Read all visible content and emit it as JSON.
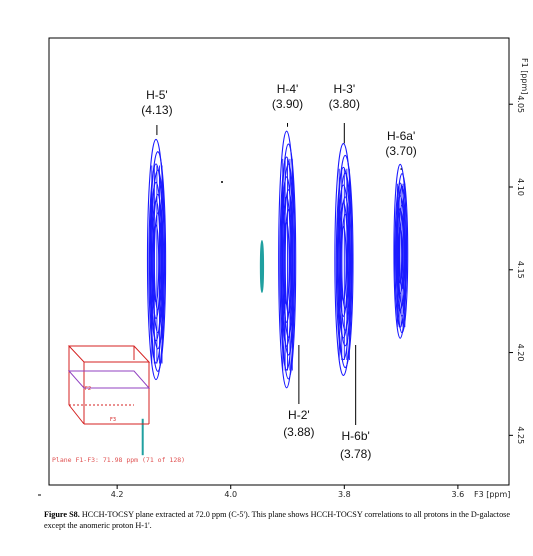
{
  "chart_data": {
    "type": "contour",
    "xaxis": {
      "label": "F3 [ppm]",
      "range": [
        4.32,
        3.51
      ],
      "reversed": true,
      "ticks": [
        4.2,
        4.0,
        3.8,
        3.6
      ]
    },
    "yaxis": {
      "label": "F1 [ppm]",
      "range": [
        4.01,
        4.28
      ],
      "reversed": true,
      "ticks": [
        4.05,
        4.1,
        4.15,
        4.2,
        4.25
      ],
      "position": "right"
    },
    "plane_label": "Plane  F1-F3:  71.98 ppm (71 of 128)",
    "peaks": [
      {
        "name": "H-5'",
        "value": "(4.13)",
        "x": 4.13,
        "y_center": 4.145,
        "y_min": 4.065,
        "y_max": 4.21,
        "half_width": 0.015
      },
      {
        "name": "H-4'",
        "value": "(3.90)",
        "x": 3.9,
        "y_center": 4.145,
        "y_min": 4.06,
        "y_max": 4.215,
        "half_width": 0.014
      },
      {
        "name": "H-3'",
        "value": "(3.80)",
        "x": 3.8,
        "y_center": 4.145,
        "y_min": 4.07,
        "y_max": 4.21,
        "half_width": 0.015
      },
      {
        "name": "H-6a'",
        "value": "(3.70)",
        "x": 3.7,
        "y_center": 4.14,
        "y_min": 4.085,
        "y_max": 4.19,
        "half_width": 0.011
      }
    ],
    "lower_labels": [
      {
        "name": "H-2'",
        "value": "(3.88)",
        "x": 3.88
      },
      {
        "name": "H-6b'",
        "value": "(3.78)",
        "x": 3.78
      }
    ],
    "colors": {
      "positive": "#1a1aff",
      "negative": "#20a0a0",
      "cube": "#d42020",
      "cube_accent": "#9040c0"
    }
  },
  "caption": {
    "bold": "Figure S8.",
    "text": " HCCH-TOCSY plane extracted at 72.0 ppm (C-5'). This plane shows HCCH-TOCSY correlations to all protons in the D-galactose except the anomeric proton H-1'."
  }
}
